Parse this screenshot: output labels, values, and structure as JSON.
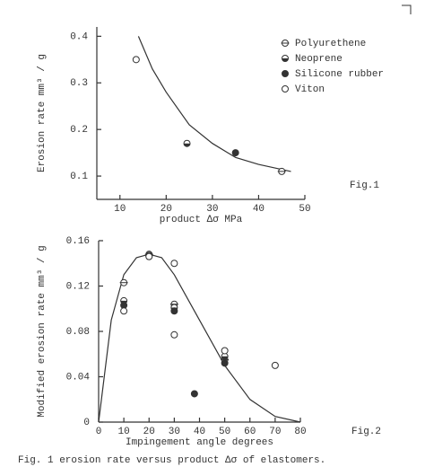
{
  "chart_data": [
    {
      "type": "scatter",
      "ylabel": "Erosion rate mm³ / g",
      "xlabel": "product Δσ MPa",
      "annotation": "Fig.1",
      "xlim": [
        5,
        50
      ],
      "xticks": [
        10,
        20,
        30,
        40,
        50
      ],
      "ylim": [
        0.05,
        0.42
      ],
      "yticks": [
        0.1,
        0.2,
        0.3,
        0.4
      ],
      "legend": "upper right",
      "color": "#333333",
      "series": [
        {
          "name": "Polyurethene",
          "marker": "circle-bar",
          "x": [
            45
          ],
          "values": [
            0.11
          ]
        },
        {
          "name": "Neoprene",
          "marker": "half",
          "x": [
            24.5
          ],
          "values": [
            0.17
          ]
        },
        {
          "name": "Silicone rubber",
          "marker": "filled",
          "x": [
            35
          ],
          "values": [
            0.15
          ]
        },
        {
          "name": "Viton",
          "marker": "open",
          "x": [
            13.5
          ],
          "values": [
            0.35
          ]
        }
      ],
      "curve": {
        "x": [
          14,
          17,
          20,
          25,
          30,
          35,
          40,
          47
        ],
        "values": [
          0.4,
          0.33,
          0.28,
          0.21,
          0.17,
          0.14,
          0.125,
          0.11
        ]
      }
    },
    {
      "type": "scatter",
      "ylabel": "Modified erosion rate mm³ / g",
      "xlabel": "Impingement angle degrees",
      "annotation": "Fig.2",
      "xlim": [
        0,
        80
      ],
      "xticks": [
        0,
        10,
        20,
        30,
        40,
        50,
        60,
        70,
        80
      ],
      "ylim": [
        0,
        0.16
      ],
      "yticks": [
        0,
        0.04,
        0.08,
        0.12,
        0.16
      ],
      "color": "#333333",
      "series": [
        {
          "marker": "circle-bar",
          "x": [
            10,
            20,
            30,
            50
          ],
          "values": [
            0.123,
            0.148,
            0.104,
            0.055
          ]
        },
        {
          "marker": "half",
          "x": [
            10,
            20,
            30,
            50
          ],
          "values": [
            0.107,
            0.147,
            0.101,
            0.058
          ]
        },
        {
          "marker": "filled",
          "x": [
            10,
            20,
            30,
            38,
            50
          ],
          "values": [
            0.103,
            0.146,
            0.098,
            0.025,
            0.052
          ]
        },
        {
          "marker": "open",
          "x": [
            10,
            20,
            30,
            30,
            50,
            70
          ],
          "values": [
            0.098,
            0.146,
            0.14,
            0.077,
            0.063,
            0.05
          ]
        }
      ],
      "curve": {
        "x": [
          0,
          5,
          10,
          15,
          20,
          25,
          30,
          40,
          50,
          60,
          70,
          80
        ],
        "values": [
          0,
          0.09,
          0.13,
          0.145,
          0.148,
          0.145,
          0.13,
          0.09,
          0.05,
          0.02,
          0.005,
          0
        ]
      }
    }
  ],
  "caption": "Fig. 1 erosion rate versus product Δσ of elastomers."
}
